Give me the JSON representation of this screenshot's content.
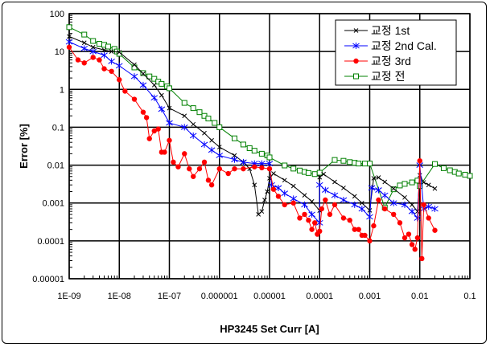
{
  "chart_data": {
    "type": "line",
    "title": "",
    "xlabel": "HP3245 Set Curr [A]",
    "ylabel": "Error [%]",
    "xscale": "log",
    "yscale": "log",
    "xlim": [
      1e-09,
      0.1
    ],
    "ylim": [
      1e-05,
      100
    ],
    "grid": true,
    "legend_position": "top-right",
    "xticks": [
      "1E-09",
      "1E-08",
      "1E-07",
      "0.000001",
      "0.00001",
      "0.0001",
      "0.001",
      "0.01",
      "0.1"
    ],
    "yticks": [
      "100",
      "10",
      "1",
      "0.1",
      "0.01",
      "0.001",
      "0.0001",
      "0.00001"
    ],
    "series": [
      {
        "name": "교정 1st",
        "color": "#000000",
        "marker": "x",
        "points": [
          [
            1e-09,
            25
          ],
          [
            2e-09,
            17
          ],
          [
            3e-09,
            13
          ],
          [
            5e-09,
            11
          ],
          [
            7e-09,
            10
          ],
          [
            1e-08,
            9.6
          ],
          [
            2e-08,
            4.5
          ],
          [
            3e-08,
            2.6
          ],
          [
            5e-08,
            1.3
          ],
          [
            7e-08,
            0.7
          ],
          [
            1e-07,
            0.32
          ],
          [
            2e-07,
            0.2
          ],
          [
            3e-07,
            0.12
          ],
          [
            5e-07,
            0.07
          ],
          [
            7e-07,
            0.045
          ],
          [
            1e-06,
            0.03
          ],
          [
            2e-06,
            0.018
          ],
          [
            3e-06,
            0.012
          ],
          [
            4e-06,
            0.008
          ],
          [
            5e-06,
            0.003
          ],
          [
            6e-06,
            0.0005
          ],
          [
            7e-06,
            0.0006
          ],
          [
            8e-06,
            0.0012
          ],
          [
            9e-06,
            0.002
          ],
          [
            1e-05,
            0.0045
          ],
          [
            1.2e-05,
            0.006
          ],
          [
            2e-05,
            0.004
          ],
          [
            3e-05,
            0.0028
          ],
          [
            5e-05,
            0.0016
          ],
          [
            7e-05,
            0.0011
          ],
          [
            0.0001,
            0.00063
          ],
          [
            0.0001,
            0.0048
          ],
          [
            0.00012,
            0.0058
          ],
          [
            0.0002,
            0.0036
          ],
          [
            0.0003,
            0.0025
          ],
          [
            0.0005,
            0.0015
          ],
          [
            0.0007,
            0.001
          ],
          [
            0.001,
            0.00064
          ],
          [
            0.0012,
            0.0045
          ],
          [
            0.0015,
            0.0047
          ],
          [
            0.002,
            0.0036
          ],
          [
            0.003,
            0.0024
          ],
          [
            0.005,
            0.0014
          ],
          [
            0.007,
            0.0009
          ],
          [
            0.009,
            0.0006
          ],
          [
            0.01,
            0.0054
          ],
          [
            0.012,
            0.0035
          ],
          [
            0.015,
            0.003
          ],
          [
            0.02,
            0.0024
          ]
        ]
      },
      {
        "name": "교정 2nd Cal.",
        "color": "#0000FF",
        "marker": "asterisk",
        "points": [
          [
            1e-09,
            18
          ],
          [
            2e-09,
            12
          ],
          [
            3e-09,
            10
          ],
          [
            5e-09,
            8
          ],
          [
            7e-09,
            5.5
          ],
          [
            1e-08,
            4.2
          ],
          [
            2e-08,
            2.2
          ],
          [
            3e-08,
            1.3
          ],
          [
            5e-08,
            0.6
          ],
          [
            7e-08,
            0.3
          ],
          [
            1e-07,
            0.13
          ],
          [
            2e-07,
            0.1
          ],
          [
            3e-07,
            0.06
          ],
          [
            5e-07,
            0.035
          ],
          [
            7e-07,
            0.025
          ],
          [
            1e-06,
            0.018
          ],
          [
            2e-06,
            0.014
          ],
          [
            3e-06,
            0.012
          ],
          [
            5e-06,
            0.011
          ],
          [
            7e-06,
            0.011
          ],
          [
            1e-05,
            0.011
          ],
          [
            1.1e-05,
            0.003
          ],
          [
            1.5e-05,
            0.0025
          ],
          [
            2e-05,
            0.0018
          ],
          [
            3e-05,
            0.0013
          ],
          [
            5e-05,
            0.0009
          ],
          [
            7e-05,
            0.0005
          ],
          [
            0.0001,
            0.0003
          ],
          [
            0.0001,
            0.003
          ],
          [
            0.00013,
            0.0022
          ],
          [
            0.0002,
            0.0016
          ],
          [
            0.0003,
            0.0012
          ],
          [
            0.0005,
            0.0009
          ],
          [
            0.0007,
            0.0007
          ],
          [
            0.001,
            0.00043
          ],
          [
            0.0011,
            0.0025
          ],
          [
            0.0015,
            0.0022
          ],
          [
            0.002,
            0.0016
          ],
          [
            0.003,
            0.001
          ],
          [
            0.005,
            0.0009
          ],
          [
            0.007,
            0.0006
          ],
          [
            0.009,
            0.0004
          ],
          [
            0.01,
            0.01
          ],
          [
            0.012,
            0.0007
          ],
          [
            0.015,
            0.0008
          ],
          [
            0.02,
            0.0007
          ]
        ]
      },
      {
        "name": "교정 3rd",
        "color": "#FF0000",
        "marker": "circle",
        "points": [
          [
            1e-09,
            13
          ],
          [
            1.5e-09,
            6
          ],
          [
            2e-09,
            5
          ],
          [
            3e-09,
            7
          ],
          [
            4e-09,
            6
          ],
          [
            5e-09,
            3.5
          ],
          [
            7e-09,
            3
          ],
          [
            1e-08,
            1.8
          ],
          [
            1.3e-08,
            0.9
          ],
          [
            2e-08,
            0.55
          ],
          [
            3e-08,
            0.25
          ],
          [
            3.5e-08,
            0.18
          ],
          [
            4e-08,
            0.05
          ],
          [
            5e-08,
            0.08
          ],
          [
            6e-08,
            0.09
          ],
          [
            7e-08,
            0.022
          ],
          [
            8e-08,
            0.022
          ],
          [
            1e-07,
            0.045
          ],
          [
            1.2e-07,
            0.012
          ],
          [
            1.5e-07,
            0.009
          ],
          [
            2e-07,
            0.02
          ],
          [
            2.5e-07,
            0.008
          ],
          [
            3e-07,
            0.005
          ],
          [
            4e-07,
            0.008
          ],
          [
            5e-07,
            0.012
          ],
          [
            6e-07,
            0.004
          ],
          [
            7e-07,
            0.003
          ],
          [
            1e-06,
            0.008
          ],
          [
            1.5e-06,
            0.006
          ],
          [
            2e-06,
            0.008
          ],
          [
            3e-06,
            0.008
          ],
          [
            5e-06,
            0.009
          ],
          [
            7e-06,
            0.0085
          ],
          [
            1e-05,
            0.008
          ],
          [
            1.2e-05,
            0.0023
          ],
          [
            1.5e-05,
            0.0015
          ],
          [
            2e-05,
            0.0009
          ],
          [
            3e-05,
            0.001
          ],
          [
            4e-05,
            0.0004
          ],
          [
            5e-05,
            0.0005
          ],
          [
            6e-05,
            0.00035
          ],
          [
            7e-05,
            0.0002
          ],
          [
            8e-05,
            0.0003
          ],
          [
            9e-05,
            0.00015
          ],
          [
            0.0001,
            0.00018
          ],
          [
            0.00011,
            0.0007
          ],
          [
            0.00013,
            0.0012
          ],
          [
            0.00016,
            0.0005
          ],
          [
            0.0002,
            0.0009
          ],
          [
            0.0003,
            0.0004
          ],
          [
            0.0004,
            0.00035
          ],
          [
            0.0005,
            0.0002
          ],
          [
            0.0006,
            0.0002
          ],
          [
            0.0007,
            0.00014
          ],
          [
            0.0008,
            0.00014
          ],
          [
            0.001,
            0.0001
          ],
          [
            0.0012,
            0.00025
          ],
          [
            0.0015,
            0.0012
          ],
          [
            0.002,
            0.0007
          ],
          [
            0.003,
            0.0005
          ],
          [
            0.004,
            0.0003
          ],
          [
            0.005,
            0.00012
          ],
          [
            0.006,
            0.00015
          ],
          [
            0.007,
            8e-05
          ],
          [
            0.008,
            6e-05
          ],
          [
            0.009,
            0.00012
          ],
          [
            0.01,
            0.013
          ],
          [
            0.011,
            3.4e-05
          ],
          [
            0.012,
            0.0009
          ],
          [
            0.015,
            0.0004
          ],
          [
            0.02,
            0.00019
          ]
        ]
      },
      {
        "name": "교정 전",
        "color": "#008000",
        "marker": "square",
        "points": [
          [
            1e-09,
            44
          ],
          [
            2e-09,
            28
          ],
          [
            3e-09,
            19
          ],
          [
            4e-09,
            16
          ],
          [
            5e-09,
            15
          ],
          [
            6e-09,
            13.5
          ],
          [
            8e-09,
            11.7
          ],
          [
            9e-09,
            10
          ],
          [
            1e-08,
            8.7
          ],
          [
            2e-08,
            3.8
          ],
          [
            3e-08,
            2.7
          ],
          [
            4e-08,
            2.2
          ],
          [
            5e-08,
            1.9
          ],
          [
            6e-08,
            1.6
          ],
          [
            7e-08,
            1.4
          ],
          [
            9e-08,
            1.2
          ],
          [
            1e-07,
            1.07
          ],
          [
            2e-07,
            0.44
          ],
          [
            3e-07,
            0.32
          ],
          [
            4e-07,
            0.25
          ],
          [
            5e-07,
            0.2
          ],
          [
            6e-07,
            0.17
          ],
          [
            8e-07,
            0.13
          ],
          [
            1e-06,
            0.1
          ],
          [
            2e-06,
            0.051
          ],
          [
            3e-06,
            0.035
          ],
          [
            4e-06,
            0.028
          ],
          [
            5e-06,
            0.024
          ],
          [
            7e-06,
            0.02
          ],
          [
            9e-06,
            0.018
          ],
          [
            1e-05,
            0.016
          ],
          [
            2e-05,
            0.0098
          ],
          [
            3e-05,
            0.0081
          ],
          [
            4e-05,
            0.0072
          ],
          [
            5e-05,
            0.0066
          ],
          [
            6e-05,
            0.0062
          ],
          [
            8e-05,
            0.0058
          ],
          [
            0.0001,
            0.0063
          ],
          [
            0.0002,
            0.0137
          ],
          [
            0.0003,
            0.013
          ],
          [
            0.0004,
            0.012
          ],
          [
            0.0005,
            0.0115
          ],
          [
            0.0006,
            0.011
          ],
          [
            0.0008,
            0.011
          ],
          [
            0.001,
            0.011
          ],
          [
            0.002,
            0.00076
          ],
          [
            0.003,
            0.0023
          ],
          [
            0.004,
            0.0029
          ],
          [
            0.005,
            0.0032
          ],
          [
            0.007,
            0.0035
          ],
          [
            0.009,
            0.0039
          ],
          [
            0.01,
            0.0028
          ],
          [
            0.02,
            0.0107
          ],
          [
            0.03,
            0.0083
          ],
          [
            0.04,
            0.0073
          ],
          [
            0.05,
            0.0066
          ],
          [
            0.06,
            0.006
          ],
          [
            0.08,
            0.0056
          ],
          [
            0.1,
            0.0052
          ]
        ]
      }
    ]
  }
}
